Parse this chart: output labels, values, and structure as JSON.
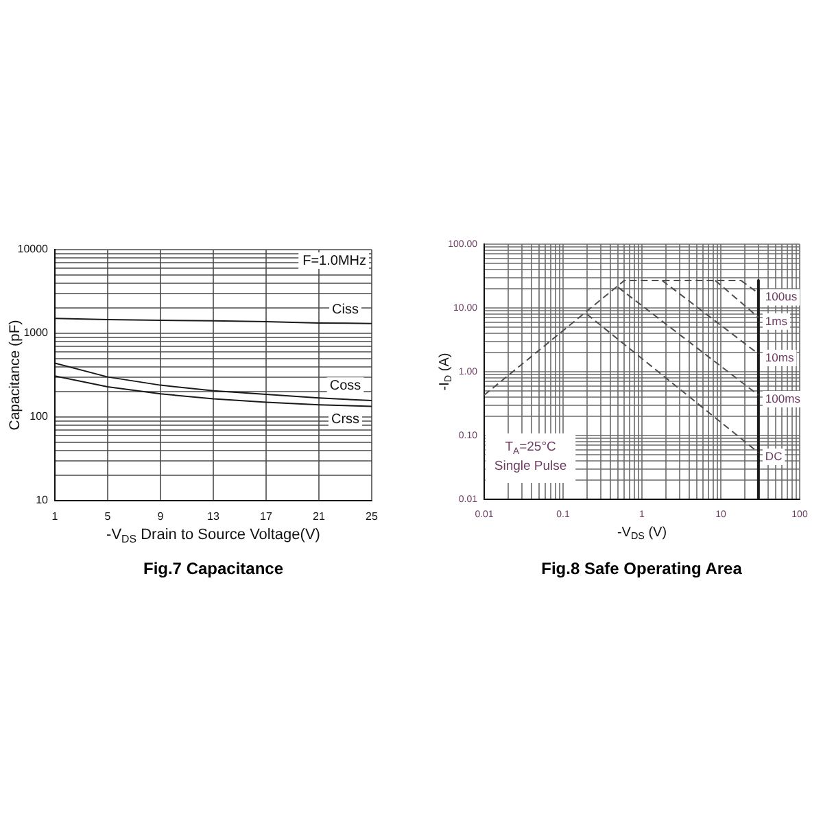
{
  "chart_data": [
    {
      "type": "line",
      "title": "Fig.7 Capacitance",
      "xlabel": "-V$_{DS}$ Drain to Source Voltage(V)",
      "ylabel": "Capacitance (pF)",
      "annotations": [
        "F=1.0MHz"
      ],
      "x": [
        1,
        5,
        9,
        13,
        17,
        21,
        25
      ],
      "series": [
        {
          "name": "Ciss",
          "color": "#1a1a1a",
          "values": [
            1510,
            1460,
            1430,
            1410,
            1380,
            1330,
            1310
          ]
        },
        {
          "name": "Coss",
          "color": "#1a1a1a",
          "values": [
            440,
            301,
            240,
            206,
            186,
            169,
            157
          ]
        },
        {
          "name": "Crss",
          "color": "#1a1a1a",
          "values": [
            309,
            229,
            189,
            165,
            150,
            140,
            134
          ]
        }
      ],
      "xlim": [
        1,
        25
      ],
      "xticks": [
        1,
        5,
        9,
        13,
        17,
        21,
        25
      ],
      "ylim": [
        10,
        10000
      ],
      "yticks": [
        10,
        {
          "value": 20,
          "label": null
        },
        {
          "value": 30,
          "label": null
        },
        {
          "value": 40,
          "label": null
        },
        {
          "value": 50,
          "label": null
        },
        {
          "value": 60,
          "label": null
        },
        {
          "value": 70,
          "label": null
        },
        {
          "value": 80,
          "label": null
        },
        {
          "value": 90,
          "label": null
        },
        100,
        {
          "value": 200,
          "label": null
        },
        {
          "value": 300,
          "label": null
        },
        {
          "value": 400,
          "label": null
        },
        {
          "value": 500,
          "label": null
        },
        {
          "value": 600,
          "label": null
        },
        {
          "value": 700,
          "label": null
        },
        {
          "value": 800,
          "label": null
        },
        {
          "value": 900,
          "label": null
        },
        1000,
        {
          "value": 2000,
          "label": null
        },
        {
          "value": 3000,
          "label": null
        },
        {
          "value": 4000,
          "label": null
        },
        {
          "value": 5000,
          "label": null
        },
        {
          "value": 6000,
          "label": null
        },
        {
          "value": 7000,
          "label": null
        },
        {
          "value": 8000,
          "label": null
        },
        {
          "value": 9000,
          "label": null
        },
        10000
      ],
      "log": true,
      "grid": true,
      "marker": "none"
    },
    {
      "type": "line",
      "title": "Fig.8 Safe Operating Area",
      "xlabel": "-V$_{DS}$ (V)",
      "ylabel": "-I$_{D}$ (A)",
      "annotations": [
        "T$_{A}$=25°C",
        "Single Pulse"
      ],
      "series": [
        {
          "color": "#4d4d4d",
          "x": [
            0.01,
            0.6,
            18
          ],
          "values": [
            0.43,
            27,
            27
          ]
        },
        {
          "name": "100us",
          "color": "#4d4d4d",
          "x": [
            18,
            30
          ],
          "values": [
            27,
            17
          ]
        },
        {
          "name": "1ms",
          "color": "#4d4d4d",
          "x": [
            8.5,
            30
          ],
          "values": [
            27,
            7.1
          ]
        },
        {
          "name": "10ms",
          "color": "#4d4d4d",
          "x": [
            1.8,
            30
          ],
          "values": [
            27,
            1.9
          ]
        },
        {
          "name": "100ms",
          "color": "#4d4d4d",
          "x": [
            0.5,
            30
          ],
          "values": [
            21,
            0.43
          ]
        },
        {
          "name": "DC",
          "color": "#4d4d4d",
          "x": [
            0.2,
            30
          ],
          "values": [
            8,
            0.054
          ]
        },
        {
          "color": "#1a1a1a",
          "x": [
            30,
            30
          ],
          "values": [
            27,
            0.01
          ],
          "line_style": "solid"
        }
      ],
      "xlim": [
        0.01,
        100
      ],
      "xticks": [
        0.01,
        {
          "value": 0.02,
          "label": null
        },
        {
          "value": 0.03,
          "label": null
        },
        {
          "value": 0.04,
          "label": null
        },
        {
          "value": 0.05,
          "label": null
        },
        {
          "value": 0.06,
          "label": null
        },
        {
          "value": 0.07,
          "label": null
        },
        {
          "value": 0.08,
          "label": null
        },
        {
          "value": 0.09,
          "label": null
        },
        0.1,
        {
          "value": 0.2,
          "label": null
        },
        {
          "value": 0.3,
          "label": null
        },
        {
          "value": 0.4,
          "label": null
        },
        {
          "value": 0.5,
          "label": null
        },
        {
          "value": 0.6,
          "label": null
        },
        {
          "value": 0.7,
          "label": null
        },
        {
          "value": 0.8,
          "label": null
        },
        {
          "value": 0.9,
          "label": null
        },
        1,
        {
          "value": 2,
          "label": null
        },
        {
          "value": 3,
          "label": null
        },
        {
          "value": 4,
          "label": null
        },
        {
          "value": 5,
          "label": null
        },
        {
          "value": 6,
          "label": null
        },
        {
          "value": 7,
          "label": null
        },
        {
          "value": 8,
          "label": null
        },
        {
          "value": 9,
          "label": null
        },
        10,
        {
          "value": 20,
          "label": null
        },
        {
          "value": 30,
          "label": null
        },
        {
          "value": 40,
          "label": null
        },
        {
          "value": 50,
          "label": null
        },
        {
          "value": 60,
          "label": null
        },
        {
          "value": 70,
          "label": null
        },
        {
          "value": 80,
          "label": null
        },
        {
          "value": 90,
          "label": null
        },
        100
      ],
      "ylim": [
        0.01,
        100
      ],
      "yticks": [
        0.01,
        {
          "value": 0.02,
          "label": null
        },
        {
          "value": 0.03,
          "label": null
        },
        {
          "value": 0.04,
          "label": null
        },
        {
          "value": 0.05,
          "label": null
        },
        {
          "value": 0.06,
          "label": null
        },
        {
          "value": 0.07,
          "label": null
        },
        {
          "value": 0.08,
          "label": null
        },
        {
          "value": 0.09,
          "label": null
        },
        {
          "value": 0.1,
          "label": "0.10"
        },
        {
          "value": 0.2,
          "label": null
        },
        {
          "value": 0.3,
          "label": null
        },
        {
          "value": 0.4,
          "label": null
        },
        {
          "value": 0.5,
          "label": null
        },
        {
          "value": 0.6,
          "label": null
        },
        {
          "value": 0.7,
          "label": null
        },
        {
          "value": 0.8,
          "label": null
        },
        {
          "value": 0.9,
          "label": null
        },
        {
          "value": 1,
          "label": "1.00"
        },
        {
          "value": 2,
          "label": null
        },
        {
          "value": 3,
          "label": null
        },
        {
          "value": 4,
          "label": null
        },
        {
          "value": 5,
          "label": null
        },
        {
          "value": 6,
          "label": null
        },
        {
          "value": 7,
          "label": null
        },
        {
          "value": 8,
          "label": null
        },
        {
          "value": 9,
          "label": null
        },
        {
          "value": 10,
          "label": "10.00"
        },
        {
          "value": 20,
          "label": null
        },
        {
          "value": 30,
          "label": null
        },
        {
          "value": 40,
          "label": null
        },
        {
          "value": 50,
          "label": null
        },
        {
          "value": 60,
          "label": null
        },
        {
          "value": 70,
          "label": null
        },
        {
          "value": 80,
          "label": null
        },
        {
          "value": 90,
          "label": null
        },
        {
          "value": 100,
          "label": "100.00"
        }
      ],
      "log": "xy",
      "grid": true,
      "marker": "none",
      "line_style": "dashed"
    }
  ]
}
